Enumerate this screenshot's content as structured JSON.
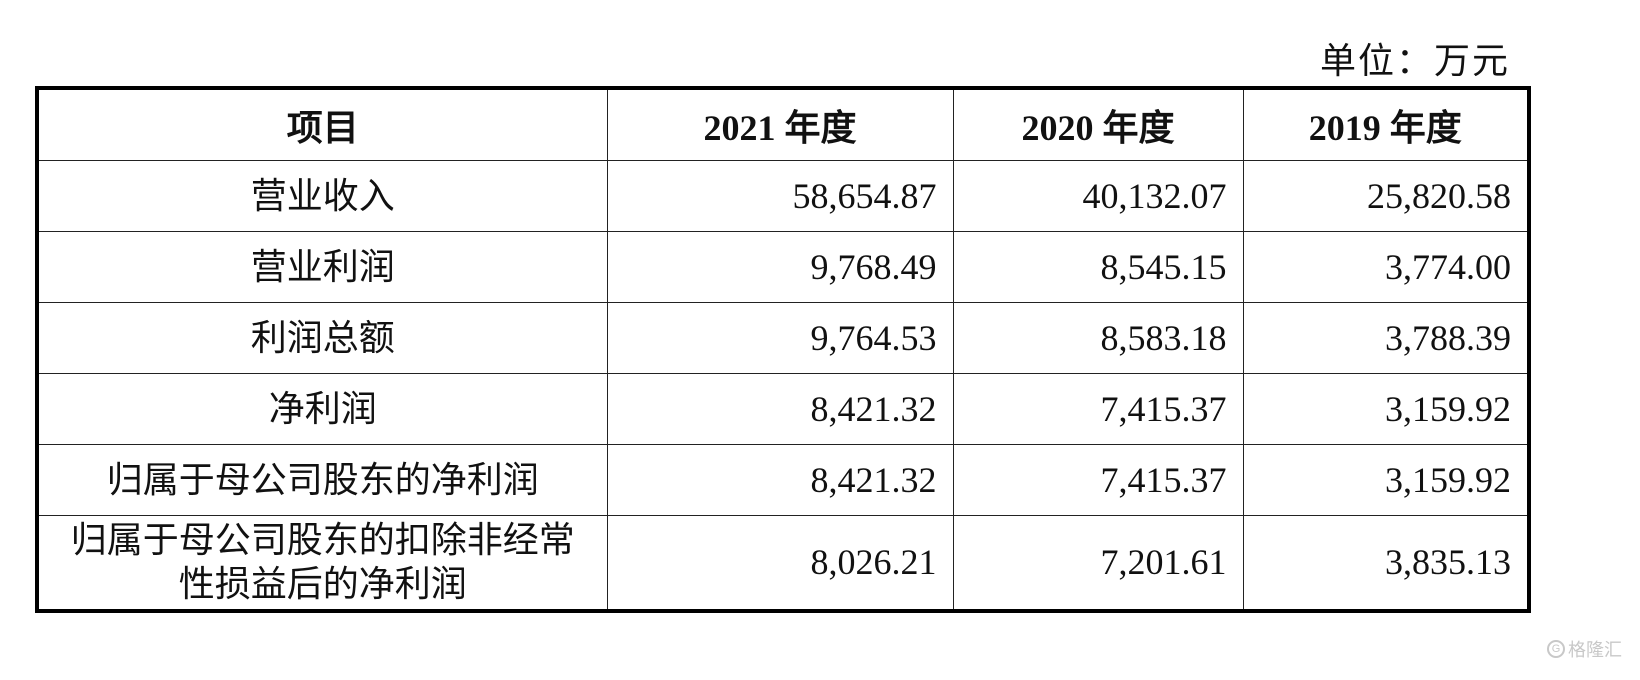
{
  "unit_note": "单位：万元",
  "table": {
    "headers": [
      "项目",
      "2021 年度",
      "2020 年度",
      "2019 年度"
    ],
    "rows": [
      {
        "item": "营业收入",
        "v2021": "58,654.87",
        "v2020": "40,132.07",
        "v2019": "25,820.58"
      },
      {
        "item": "营业利润",
        "v2021": "9,768.49",
        "v2020": "8,545.15",
        "v2019": "3,774.00"
      },
      {
        "item": "利润总额",
        "v2021": "9,764.53",
        "v2020": "8,583.18",
        "v2019": "3,788.39"
      },
      {
        "item": "净利润",
        "v2021": "8,421.32",
        "v2020": "7,415.37",
        "v2019": "3,159.92"
      },
      {
        "item": "归属于母公司股东的净利润",
        "v2021": "8,421.32",
        "v2020": "7,415.37",
        "v2019": "3,159.92"
      },
      {
        "item_line1": "归属于母公司股东的扣除非经常",
        "item_line2": "性损益后的净利润",
        "v2021": "8,026.21",
        "v2020": "7,201.61",
        "v2019": "3,835.13"
      }
    ]
  },
  "watermark": {
    "icon": "G",
    "text": "格隆汇"
  }
}
